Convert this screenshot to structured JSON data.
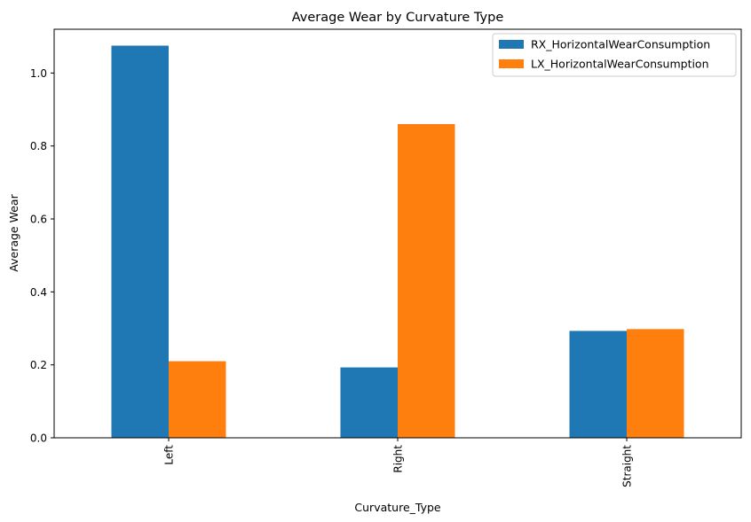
{
  "chart_data": {
    "type": "bar",
    "title": "Average Wear by Curvature Type",
    "xlabel": "Curvature_Type",
    "ylabel": "Average Wear",
    "categories": [
      "Left",
      "Right",
      "Straight"
    ],
    "series": [
      {
        "name": "RX_HorizontalWearConsumption",
        "color": "#1f77b4",
        "values": [
          1.075,
          0.193,
          0.293
        ]
      },
      {
        "name": "LX_HorizontalWearConsumption",
        "color": "#ff7f0e",
        "values": [
          0.21,
          0.86,
          0.298
        ]
      }
    ],
    "ylim": [
      0,
      1.12
    ],
    "yticks": [
      "0.0",
      "0.2",
      "0.4",
      "0.6",
      "0.8",
      "1.0"
    ],
    "ytick_values": [
      0,
      0.2,
      0.4,
      0.6,
      0.8,
      1.0
    ],
    "grid": false,
    "legend_position": "top-right"
  }
}
